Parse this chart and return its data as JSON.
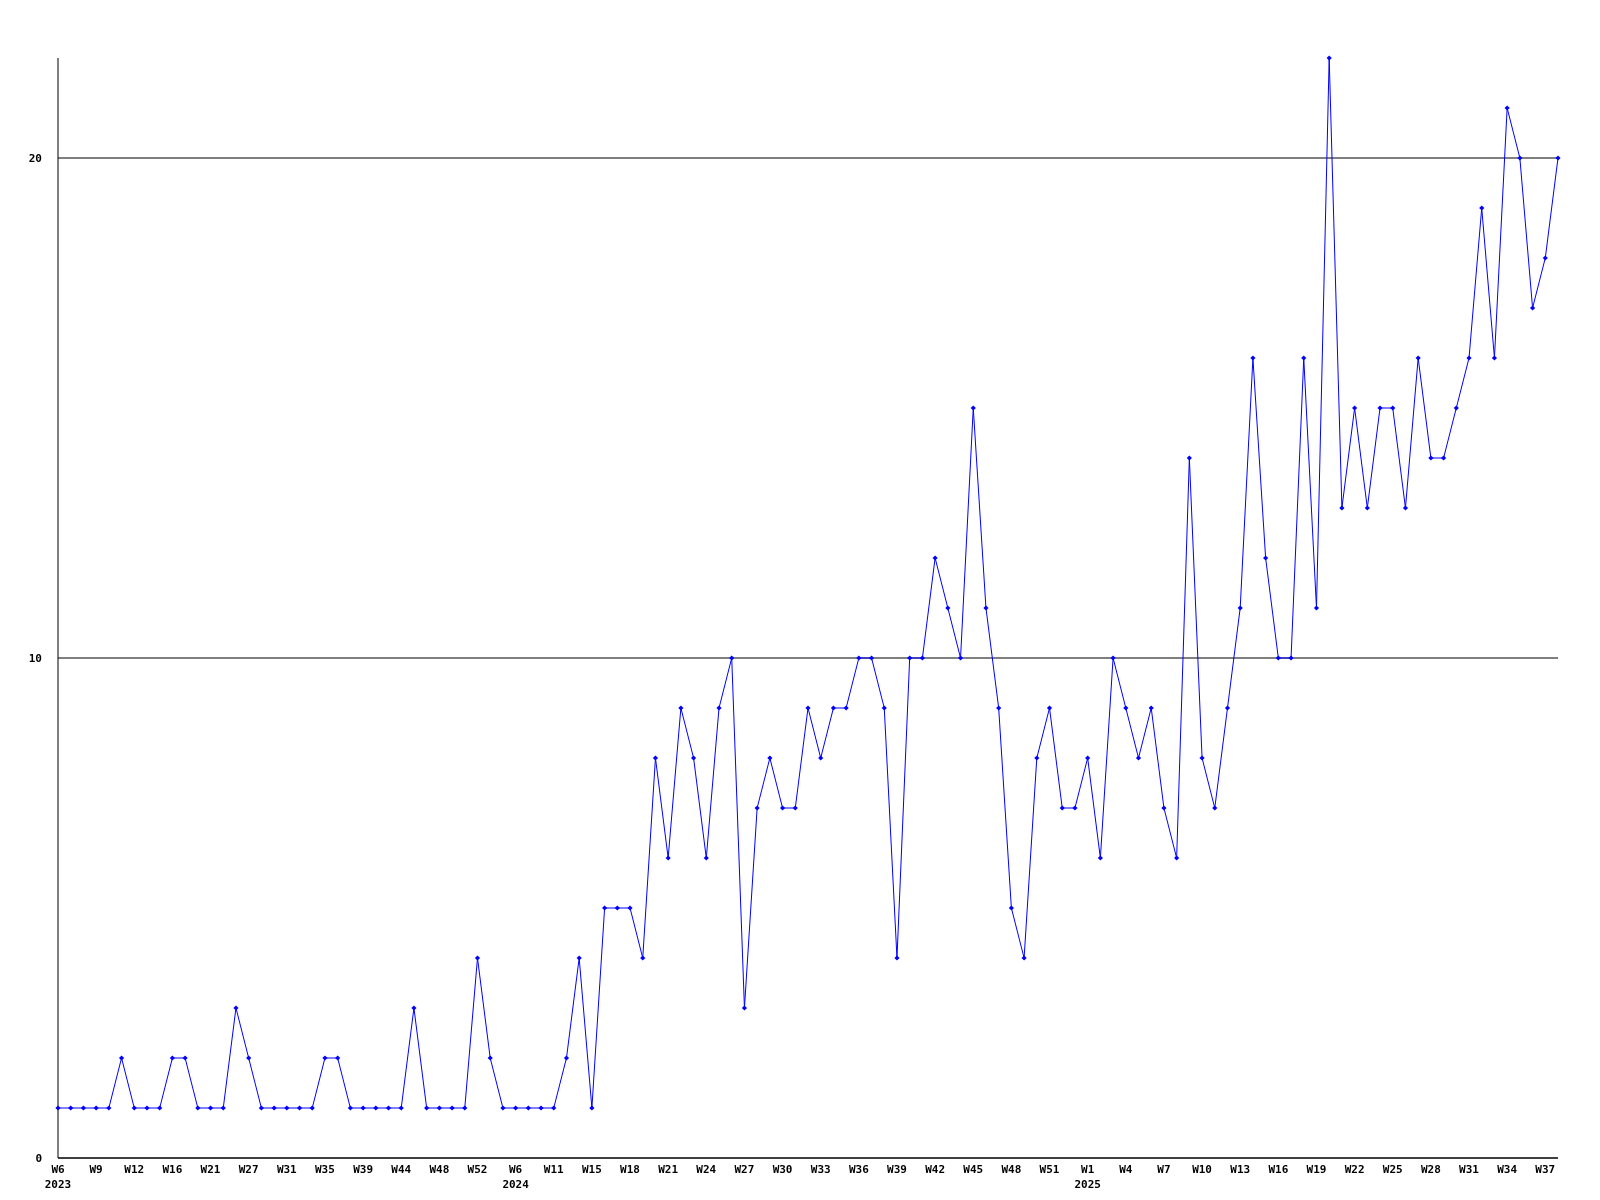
{
  "chart_data": {
    "type": "line",
    "categories": [
      "W6\n2023",
      null,
      null,
      "W9",
      null,
      null,
      "W12",
      null,
      null,
      "W16",
      null,
      null,
      "W21",
      null,
      null,
      "W27",
      null,
      null,
      "W31",
      null,
      null,
      "W35",
      null,
      null,
      "W39",
      null,
      null,
      "W44",
      null,
      null,
      "W48",
      null,
      null,
      "W52",
      null,
      null,
      "W6\n2024",
      null,
      null,
      "W11",
      null,
      null,
      "W15",
      null,
      null,
      "W18",
      null,
      null,
      "W21",
      null,
      null,
      "W24",
      null,
      null,
      "W27",
      null,
      null,
      "W30",
      null,
      null,
      "W33",
      null,
      null,
      "W36",
      null,
      null,
      "W39",
      null,
      null,
      "W42",
      null,
      null,
      "W45",
      null,
      null,
      "W48",
      null,
      null,
      "W51",
      null,
      null,
      "W1\n2025",
      null,
      null,
      "W4",
      null,
      null,
      "W7",
      null,
      null,
      "W10",
      null,
      null,
      "W13",
      null,
      null,
      "W16",
      null,
      null,
      "W19",
      null,
      null,
      "W22",
      null,
      null,
      "W25",
      null,
      null,
      "W28",
      null,
      null,
      "W31",
      null,
      null,
      "W34",
      null,
      null,
      "W37",
      null
    ],
    "series": [
      {
        "color": "#0000ff",
        "values": [
          1,
          1,
          1,
          1,
          1,
          2,
          1,
          1,
          1,
          2,
          2,
          1,
          1,
          1,
          3,
          2,
          1,
          1,
          1,
          1,
          1,
          2,
          2,
          1,
          1,
          1,
          1,
          1,
          3,
          1,
          1,
          1,
          1,
          4,
          2,
          1,
          1,
          1,
          1,
          1,
          2,
          4,
          1,
          5,
          5,
          5,
          4,
          8,
          6,
          9,
          8,
          6,
          9,
          10,
          3,
          7,
          8,
          7,
          7,
          9,
          8,
          9,
          9,
          10,
          10,
          9,
          4,
          10,
          10,
          12,
          11,
          10,
          15,
          11,
          9,
          5,
          4,
          8,
          9,
          7,
          7,
          8,
          6,
          10,
          9,
          8,
          9,
          7,
          6,
          14,
          8,
          7,
          9,
          11,
          16,
          12,
          10,
          10,
          16,
          11,
          22,
          13,
          15,
          13,
          15,
          15,
          13,
          16,
          14,
          14,
          15,
          16,
          19,
          16,
          21,
          20,
          17,
          18,
          20
        ]
      }
    ],
    "ylim": [
      0,
      22
    ],
    "yticks": [
      0,
      10,
      20
    ],
    "grid": "y",
    "marker": "diamond"
  }
}
